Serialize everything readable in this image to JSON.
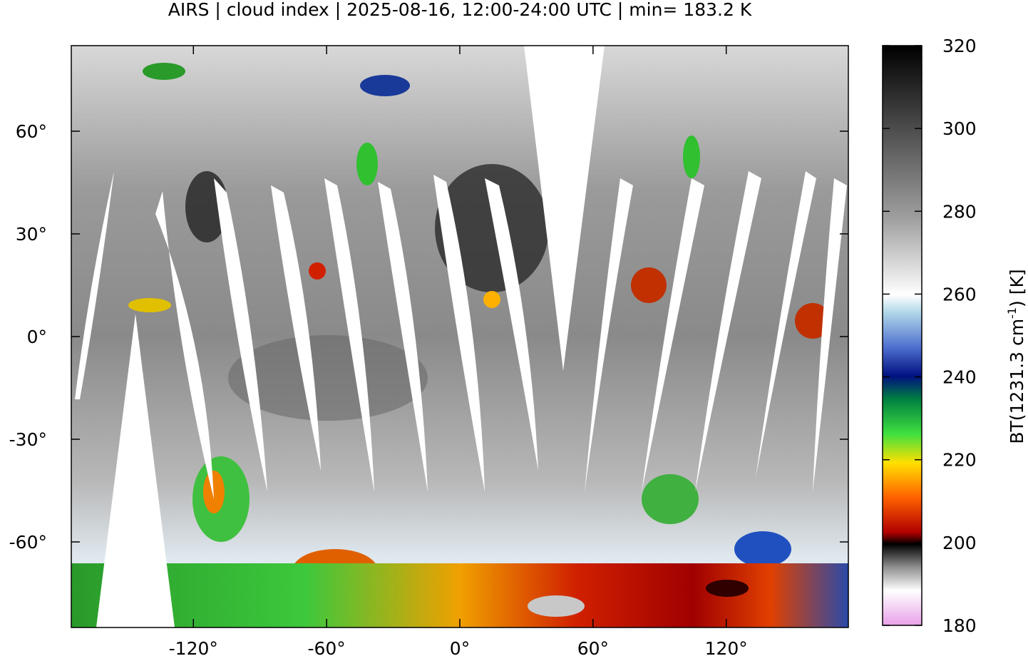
{
  "map": {
    "title": "AIRS | cloud index | 2025-08-16, 12:00-24:00 UTC | min= 183.2 K",
    "xlim": [
      -175,
      175
    ],
    "ylim": [
      -85,
      85
    ],
    "xticks": [
      {
        "value": -120,
        "label": "-120°"
      },
      {
        "value": -60,
        "label": "-60°"
      },
      {
        "value": 0,
        "label": "0°"
      },
      {
        "value": 60,
        "label": "60°"
      },
      {
        "value": 120,
        "label": "120°"
      }
    ],
    "yticks": [
      {
        "value": 60,
        "label": "60°"
      },
      {
        "value": 30,
        "label": "30°"
      },
      {
        "value": 0,
        "label": "0°"
      },
      {
        "value": -30,
        "label": "-30°"
      },
      {
        "value": -60,
        "label": "-60°"
      }
    ],
    "colorbar": {
      "label_text": "BT(1231.3 cm",
      "label_superscript": "-1",
      "label_suffix": ") [K]",
      "lim": [
        180,
        320
      ],
      "ticks": [
        180,
        200,
        220,
        240,
        260,
        280,
        300,
        320
      ]
    }
  }
}
